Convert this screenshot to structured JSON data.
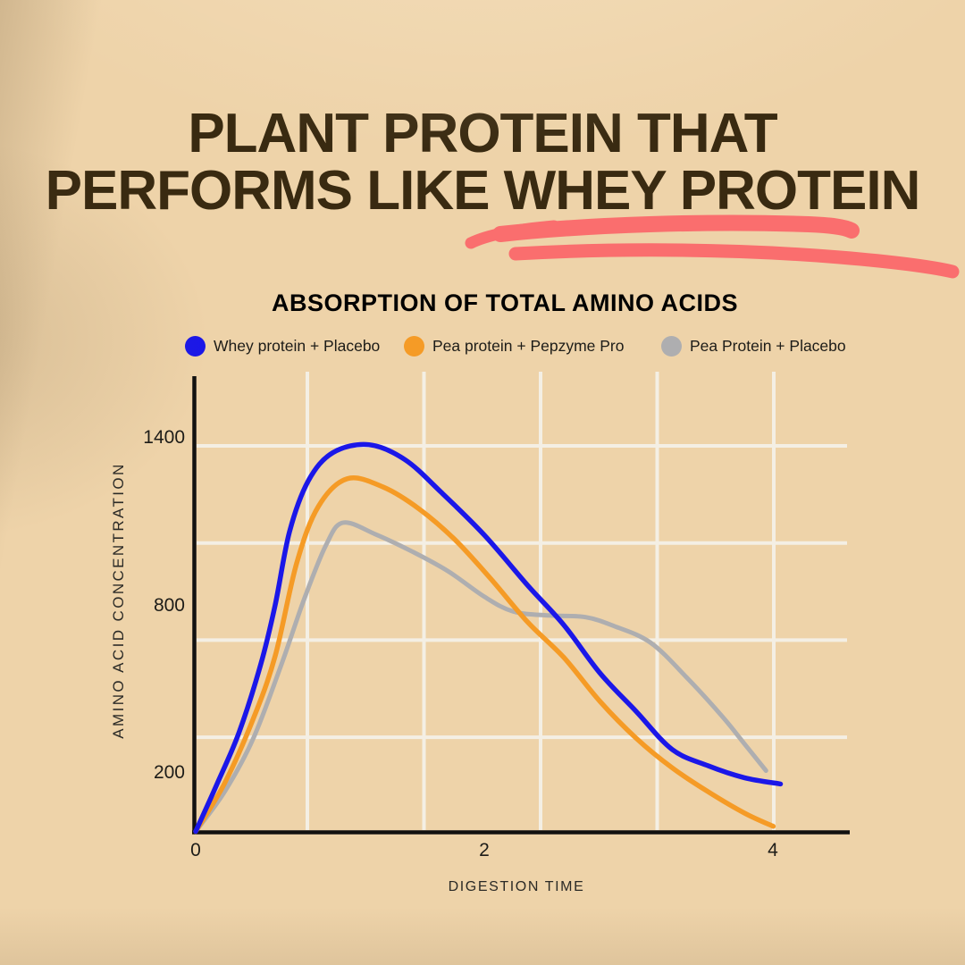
{
  "page": {
    "background_color": "#eed3a9"
  },
  "headline": {
    "line1": "PLANT PROTEIN THAT",
    "line2": "PERFORMS LIKE WHEY PROTEIN",
    "text_color": "#392a11",
    "marker_color": "#fa6e6e"
  },
  "chart": {
    "title": "ABSORPTION OF TOTAL AMINO ACIDS",
    "legend": [
      {
        "label": "Whey protein + Placebo",
        "color": "#1b17e8"
      },
      {
        "label": "Pea protein + Pepzyme Pro",
        "color": "#f59b26"
      },
      {
        "label": "Pea Protein + Placebo",
        "color": "#aeaeb0"
      }
    ],
    "y_axis": {
      "label": "AMINO ACID CONCENTRATION",
      "ticks": [
        "1400",
        "800",
        "200"
      ]
    },
    "x_axis": {
      "label": "DIGESTION TIME",
      "ticks": [
        "0",
        "2",
        "4"
      ]
    }
  },
  "chart_data": {
    "type": "line",
    "title": "ABSORPTION OF TOTAL AMINO ACIDS",
    "xlabel": "DIGESTION TIME",
    "ylabel": "AMINO ACID CONCENTRATION",
    "xlim": [
      0,
      4.5
    ],
    "ylim": [
      0,
      1600
    ],
    "x_ticks": [
      0,
      2,
      4
    ],
    "y_ticks": [
      200,
      800,
      1400
    ],
    "grid": true,
    "legend_position": "top",
    "series": [
      {
        "name": "Whey protein + Placebo",
        "color": "#1b17e8",
        "points": [
          [
            0,
            0
          ],
          [
            0.15,
            170
          ],
          [
            0.3,
            350
          ],
          [
            0.45,
            590
          ],
          [
            0.55,
            800
          ],
          [
            0.65,
            1060
          ],
          [
            0.78,
            1240
          ],
          [
            0.95,
            1340
          ],
          [
            1.2,
            1368
          ],
          [
            1.45,
            1315
          ],
          [
            1.7,
            1200
          ],
          [
            2.0,
            1048
          ],
          [
            2.3,
            870
          ],
          [
            2.55,
            730
          ],
          [
            2.8,
            560
          ],
          [
            3.05,
            425
          ],
          [
            3.3,
            290
          ],
          [
            3.55,
            232
          ],
          [
            3.8,
            190
          ],
          [
            4.05,
            168
          ]
        ]
      },
      {
        "name": "Pea protein + Pepzyme Pro",
        "color": "#f59b26",
        "points": [
          [
            0,
            0
          ],
          [
            0.2,
            170
          ],
          [
            0.4,
            400
          ],
          [
            0.55,
            620
          ],
          [
            0.7,
            950
          ],
          [
            0.85,
            1150
          ],
          [
            1.05,
            1248
          ],
          [
            1.3,
            1218
          ],
          [
            1.55,
            1140
          ],
          [
            1.8,
            1030
          ],
          [
            2.05,
            890
          ],
          [
            2.3,
            740
          ],
          [
            2.55,
            615
          ],
          [
            2.8,
            460
          ],
          [
            3.05,
            330
          ],
          [
            3.3,
            225
          ],
          [
            3.55,
            140
          ],
          [
            3.8,
            65
          ],
          [
            4.0,
            18
          ]
        ]
      },
      {
        "name": "Pea Protein + Placebo",
        "color": "#aeaeb0",
        "points": [
          [
            0,
            0
          ],
          [
            0.2,
            140
          ],
          [
            0.4,
            330
          ],
          [
            0.6,
            600
          ],
          [
            0.75,
            820
          ],
          [
            0.9,
            1010
          ],
          [
            1.02,
            1092
          ],
          [
            1.25,
            1050
          ],
          [
            1.5,
            990
          ],
          [
            1.75,
            920
          ],
          [
            2.0,
            830
          ],
          [
            2.2,
            778
          ],
          [
            2.45,
            764
          ],
          [
            2.7,
            758
          ],
          [
            2.9,
            726
          ],
          [
            3.15,
            668
          ],
          [
            3.4,
            545
          ],
          [
            3.65,
            405
          ],
          [
            3.8,
            310
          ],
          [
            3.95,
            215
          ]
        ]
      }
    ]
  }
}
